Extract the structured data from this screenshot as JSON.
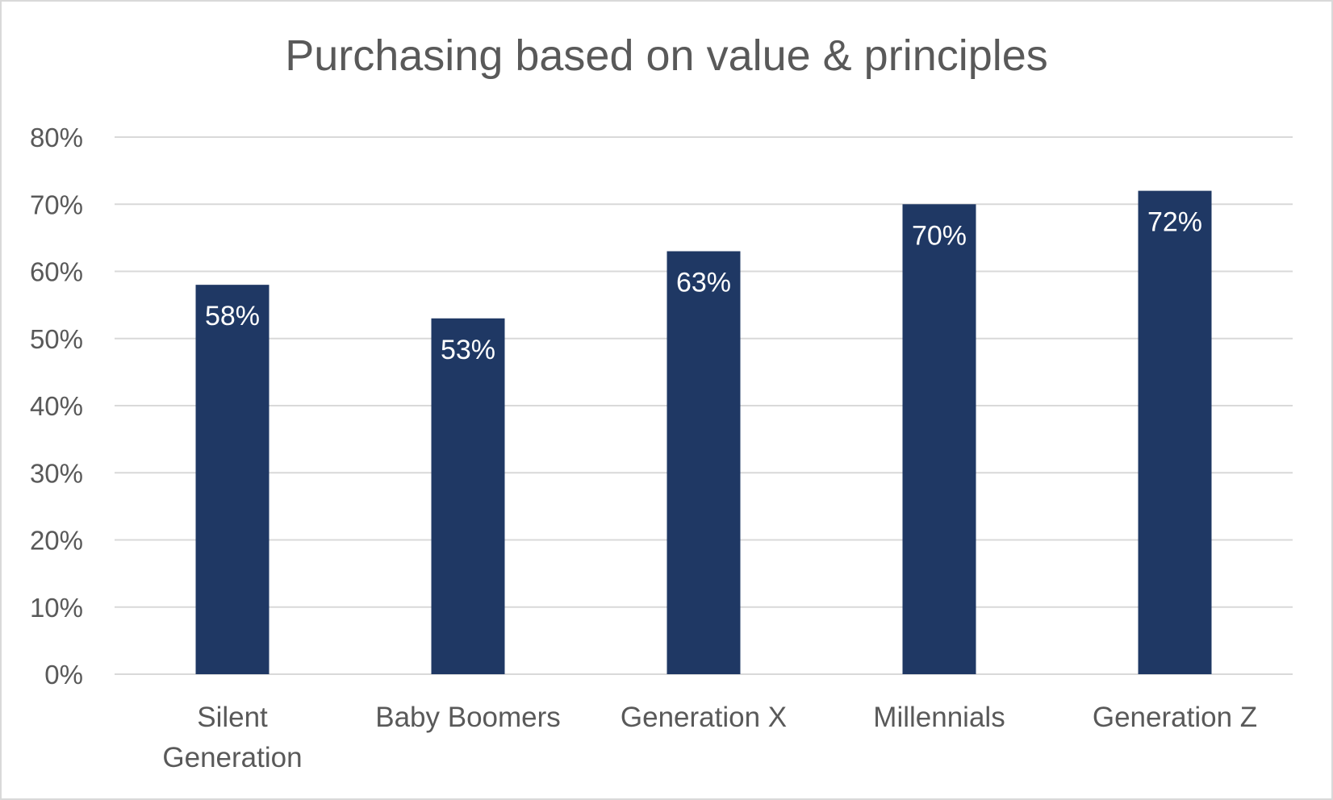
{
  "chart_data": {
    "type": "bar",
    "title": "Purchasing based on value & principles",
    "categories": [
      "Silent Generation",
      "Baby Boomers",
      "Generation X",
      "Millennials",
      "Generation Z"
    ],
    "category_lines": [
      [
        "Silent",
        "Generation"
      ],
      [
        "Baby Boomers"
      ],
      [
        "Generation X"
      ],
      [
        "Millennials"
      ],
      [
        "Generation Z"
      ]
    ],
    "values": [
      58,
      53,
      63,
      70,
      72
    ],
    "data_labels": [
      "58%",
      "53%",
      "63%",
      "70%",
      "72%"
    ],
    "ylim": [
      0,
      80
    ],
    "yticks": [
      0,
      10,
      20,
      30,
      40,
      50,
      60,
      70,
      80
    ],
    "ytick_labels": [
      "0%",
      "10%",
      "20%",
      "30%",
      "40%",
      "50%",
      "60%",
      "70%",
      "80%"
    ],
    "xlabel": "",
    "ylabel": "",
    "grid": true,
    "legend": "none",
    "colors": {
      "bar": "#1f3864",
      "grid": "#d9d9d9",
      "text": "#595959",
      "label": "#ffffff"
    }
  }
}
